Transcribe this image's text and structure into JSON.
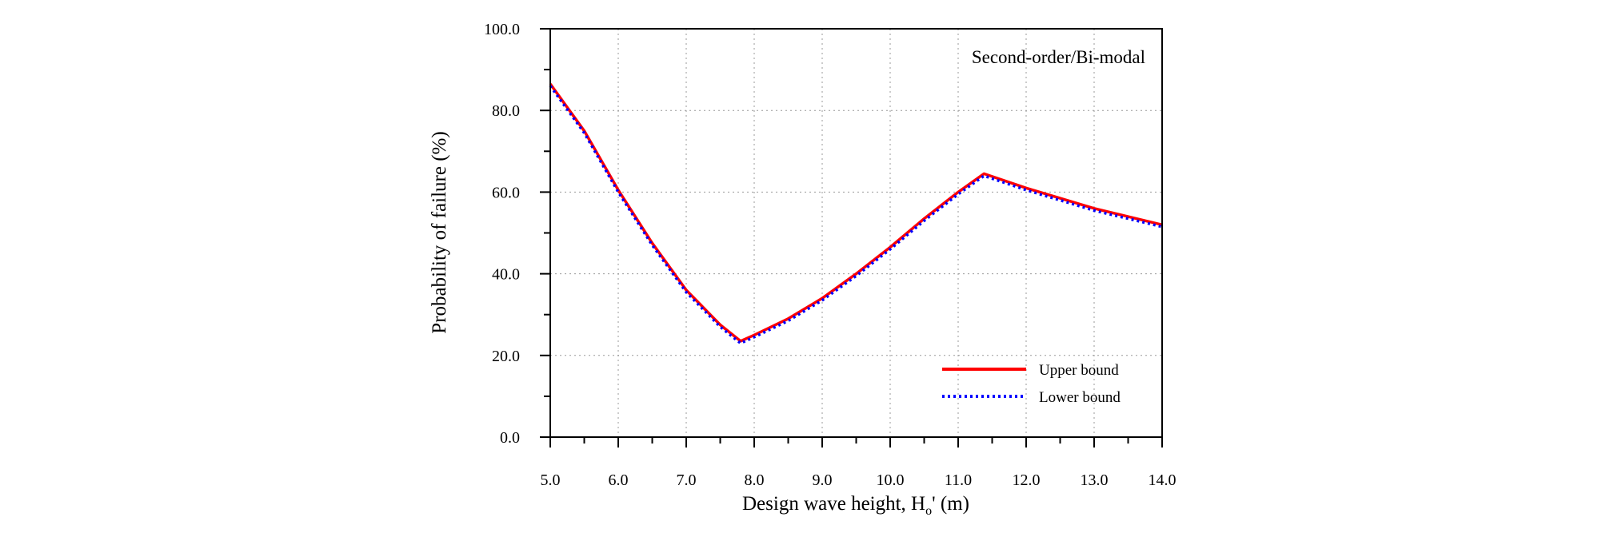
{
  "chart_data": {
    "type": "line",
    "annotation": "Second-order/Bi-modal",
    "xlabel": "Design wave height,  H",
    "xlabel_sub": "o",
    "xlabel_suffix": "' (m)",
    "ylabel": "Probability of failure (%)",
    "xlim": [
      5.0,
      14.0
    ],
    "ylim": [
      0.0,
      100.0
    ],
    "x_ticks": [
      "5.0",
      "6.0",
      "7.0",
      "8.0",
      "9.0",
      "10.0",
      "11.0",
      "12.0",
      "13.0",
      "14.0"
    ],
    "y_ticks": [
      "0.0",
      "20.0",
      "40.0",
      "60.0",
      "80.0",
      "100.0"
    ],
    "grid": true,
    "legend_position": "lower-right",
    "series": [
      {
        "name": "Upper bound",
        "color": "#ff0000",
        "style": "solid",
        "x": [
          5.0,
          5.5,
          6.0,
          6.5,
          7.0,
          7.5,
          7.8,
          8.0,
          8.5,
          9.0,
          9.5,
          10.0,
          10.5,
          11.0,
          11.38,
          12.0,
          12.5,
          13.0,
          13.5,
          14.0
        ],
        "y": [
          86.5,
          75.0,
          60.5,
          47.5,
          36.0,
          27.5,
          23.5,
          25.0,
          29.0,
          34.0,
          40.0,
          46.5,
          53.5,
          60.0,
          64.5,
          61.0,
          58.5,
          56.0,
          54.0,
          52.0
        ]
      },
      {
        "name": "Lower bound",
        "color": "#0000ff",
        "style": "dotted",
        "x": [
          5.0,
          5.5,
          6.0,
          6.5,
          7.0,
          7.5,
          7.8,
          8.0,
          8.5,
          9.0,
          9.5,
          10.0,
          10.5,
          11.0,
          11.38,
          12.0,
          12.5,
          13.0,
          13.5,
          14.0
        ],
        "y": [
          86.0,
          74.5,
          60.0,
          47.0,
          35.5,
          27.0,
          23.0,
          24.5,
          28.5,
          33.5,
          39.5,
          46.0,
          53.0,
          59.5,
          64.0,
          60.5,
          58.0,
          55.5,
          53.5,
          51.5
        ]
      }
    ]
  }
}
